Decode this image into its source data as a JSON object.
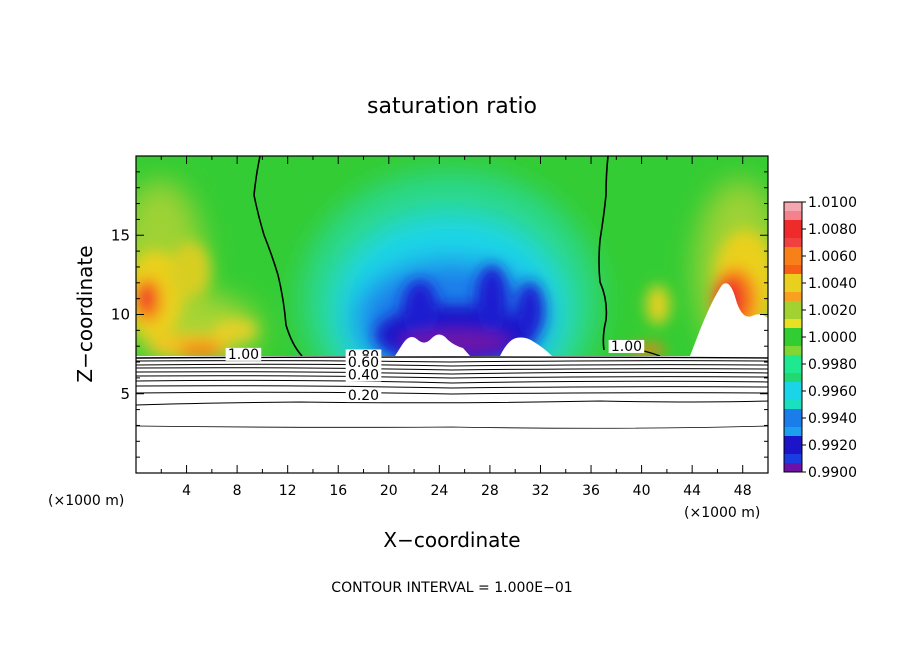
{
  "chart_data": {
    "type": "heatmap",
    "title": "saturation ratio",
    "xlabel": "X−coordinate",
    "ylabel": "Z−coordinate",
    "x_unit_left": "(×1000 m)",
    "x_unit_right": "(×1000 m)",
    "footer": "CONTOUR INTERVAL = 1.000E−01",
    "xlim": [
      0,
      50
    ],
    "ylim": [
      0,
      20
    ],
    "x_ticks": [
      "4",
      "8",
      "12",
      "16",
      "20",
      "24",
      "28",
      "32",
      "36",
      "40",
      "44",
      "48"
    ],
    "x_tick_values": [
      4,
      8,
      12,
      16,
      20,
      24,
      28,
      32,
      36,
      40,
      44,
      48
    ],
    "y_ticks": [
      "5",
      "10",
      "15"
    ],
    "y_tick_values": [
      5,
      10,
      15
    ],
    "colorbar": {
      "labels": [
        "1.0100",
        "1.0080",
        "1.0060",
        "1.0040",
        "1.0020",
        "1.0000",
        "0.9980",
        "0.9960",
        "0.9940",
        "0.9920",
        "0.9900"
      ],
      "values": [
        1.01,
        1.008,
        1.006,
        1.004,
        1.002,
        1.0,
        0.998,
        0.996,
        0.994,
        0.992,
        0.99
      ],
      "colors": [
        "#f6a6ae",
        "#ee2a2a",
        "#f88018",
        "#ead01e",
        "#a2d232",
        "#32cd32",
        "#1ee890",
        "#1ad5e8",
        "#1a7dea",
        "#1c14c8",
        "#6c12a8"
      ]
    },
    "contour_labels": [
      {
        "text": "1.00",
        "x": 8.5,
        "z": 7.2
      },
      {
        "text": "1.00",
        "x": 38.8,
        "z": 7.7
      },
      {
        "text": "0.80",
        "x": 18.0,
        "z": 7.1
      },
      {
        "text": "0.60",
        "x": 18.0,
        "z": 6.7
      },
      {
        "text": "0.40",
        "x": 18.0,
        "z": 5.9
      },
      {
        "text": "0.20",
        "x": 18.0,
        "z": 4.6
      }
    ]
  }
}
